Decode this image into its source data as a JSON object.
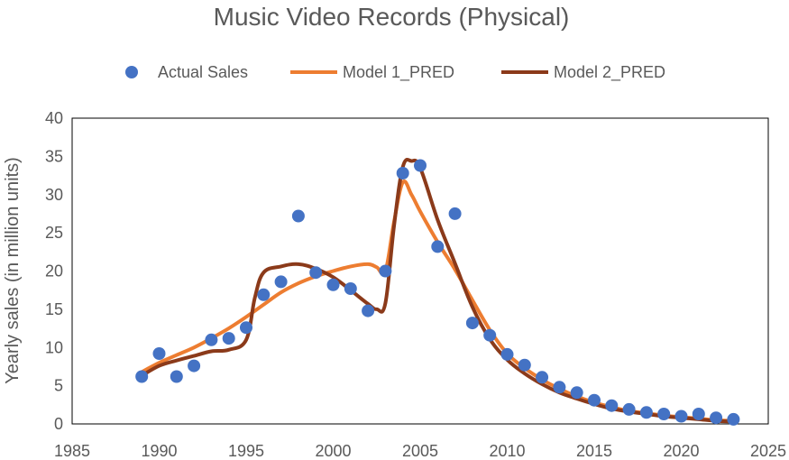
{
  "chart_data": {
    "type": "scatter",
    "title": "Music Video Records (Physical)",
    "xlabel": "",
    "ylabel": "Yearly sales (in million units)",
    "xlim": [
      1985,
      2025
    ],
    "ylim": [
      0,
      40
    ],
    "x_ticks": [
      "1985",
      "1990",
      "1995",
      "2000",
      "2005",
      "2010",
      "2015",
      "2020",
      "2025"
    ],
    "y_ticks": [
      "0",
      "5",
      "10",
      "15",
      "20",
      "25",
      "30",
      "35",
      "40"
    ],
    "grid": false,
    "legend_position": "top",
    "series": [
      {
        "name": "Actual Sales",
        "kind": "scatter",
        "color": "#4472C4",
        "points": [
          [
            1989,
            6.2
          ],
          [
            1990,
            9.2
          ],
          [
            1991,
            6.2
          ],
          [
            1992,
            7.6
          ],
          [
            1993,
            11.0
          ],
          [
            1994,
            11.2
          ],
          [
            1995,
            12.6
          ],
          [
            1996,
            16.9
          ],
          [
            1997,
            18.6
          ],
          [
            1998,
            27.2
          ],
          [
            1999,
            19.8
          ],
          [
            2000,
            18.2
          ],
          [
            2001,
            17.7
          ],
          [
            2002,
            14.8
          ],
          [
            2003,
            20.0
          ],
          [
            2004,
            32.8
          ],
          [
            2005,
            33.8
          ],
          [
            2006,
            23.2
          ],
          [
            2007,
            27.5
          ],
          [
            2008,
            13.2
          ],
          [
            2009,
            11.6
          ],
          [
            2010,
            9.1
          ],
          [
            2011,
            7.7
          ],
          [
            2012,
            6.1
          ],
          [
            2013,
            4.8
          ],
          [
            2014,
            4.1
          ],
          [
            2015,
            3.1
          ],
          [
            2016,
            2.4
          ],
          [
            2017,
            1.9
          ],
          [
            2018,
            1.5
          ],
          [
            2019,
            1.3
          ],
          [
            2020,
            1.0
          ],
          [
            2021,
            1.3
          ],
          [
            2022,
            0.8
          ],
          [
            2023,
            0.6
          ]
        ]
      },
      {
        "name": "Model 1_PRED",
        "kind": "line",
        "color": "#ED7D31",
        "points": [
          [
            1989,
            6.8
          ],
          [
            1990,
            8.0
          ],
          [
            1991,
            9.0
          ],
          [
            1992,
            10.0
          ],
          [
            1993,
            11.2
          ],
          [
            1994,
            12.5
          ],
          [
            1995,
            14.0
          ],
          [
            1996,
            15.6
          ],
          [
            1997,
            17.2
          ],
          [
            1998,
            18.4
          ],
          [
            1999,
            19.3
          ],
          [
            2000,
            20.0
          ],
          [
            2001,
            20.6
          ],
          [
            2002,
            20.9
          ],
          [
            2002.5,
            20.5
          ],
          [
            2003,
            20.0
          ],
          [
            2003.5,
            26.5
          ],
          [
            2004,
            31.6
          ],
          [
            2004.5,
            30.0
          ],
          [
            2005,
            27.8
          ],
          [
            2006,
            23.8
          ],
          [
            2007,
            20.2
          ],
          [
            2008,
            16.2
          ],
          [
            2009,
            12.3
          ],
          [
            2010,
            9.2
          ],
          [
            2011,
            7.3
          ],
          [
            2012,
            5.8
          ],
          [
            2013,
            4.6
          ],
          [
            2014,
            3.6
          ],
          [
            2015,
            2.8
          ],
          [
            2016,
            2.2
          ],
          [
            2017,
            1.7
          ],
          [
            2018,
            1.4
          ],
          [
            2019,
            1.1
          ],
          [
            2020,
            0.9
          ],
          [
            2021,
            0.7
          ],
          [
            2022,
            0.5
          ],
          [
            2023,
            0.4
          ]
        ]
      },
      {
        "name": "Model 2_PRED",
        "kind": "line",
        "color": "#8B3A1A",
        "points": [
          [
            1989,
            6.3
          ],
          [
            1990,
            7.6
          ],
          [
            1991,
            8.3
          ],
          [
            1992,
            8.9
          ],
          [
            1993,
            9.5
          ],
          [
            1994,
            9.7
          ],
          [
            1995,
            11.0
          ],
          [
            1995.5,
            16.5
          ],
          [
            1996,
            19.8
          ],
          [
            1997,
            20.6
          ],
          [
            1998,
            20.9
          ],
          [
            1999,
            20.3
          ],
          [
            2000,
            19.2
          ],
          [
            2001,
            17.5
          ],
          [
            2002,
            15.7
          ],
          [
            2002.5,
            15.0
          ],
          [
            2003,
            15.8
          ],
          [
            2003.5,
            26.0
          ],
          [
            2004,
            33.6
          ],
          [
            2004.5,
            34.4
          ],
          [
            2005,
            33.5
          ],
          [
            2006,
            26.7
          ],
          [
            2007,
            21.0
          ],
          [
            2008,
            15.3
          ],
          [
            2009,
            11.1
          ],
          [
            2010,
            8.4
          ],
          [
            2011,
            6.6
          ],
          [
            2012,
            5.2
          ],
          [
            2013,
            4.1
          ],
          [
            2014,
            3.3
          ],
          [
            2015,
            2.6
          ],
          [
            2016,
            2.0
          ],
          [
            2017,
            1.6
          ],
          [
            2018,
            1.3
          ],
          [
            2019,
            1.0
          ],
          [
            2020,
            0.8
          ],
          [
            2021,
            0.6
          ],
          [
            2022,
            0.4
          ],
          [
            2023,
            0.3
          ]
        ]
      }
    ]
  }
}
